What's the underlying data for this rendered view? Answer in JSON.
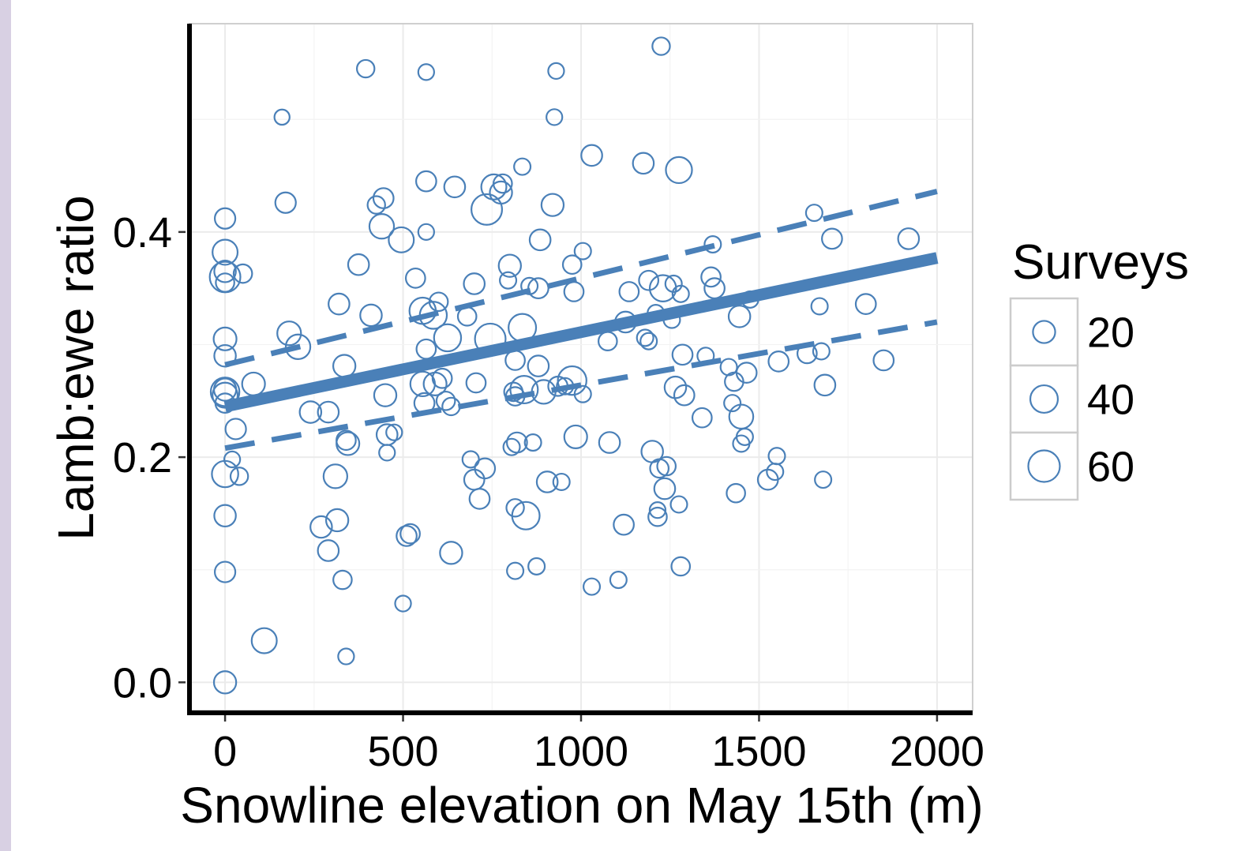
{
  "chart_data": {
    "type": "scatter",
    "xlabel": "Snowline elevation on May 15th (m)",
    "ylabel": "Lamb:ewe ratio",
    "xlim": [
      -100,
      2100
    ],
    "ylim": [
      -0.025,
      0.585
    ],
    "x_ticks": [
      0,
      500,
      1000,
      1500,
      2000
    ],
    "y_ticks": [
      0.0,
      0.2,
      0.4
    ],
    "y_tick_labels": [
      "0.0",
      "0.2",
      "0.4"
    ],
    "grid": true,
    "colors": {
      "point": "#4a80b8",
      "fit": "#4a80b8",
      "grid": "#ebebeb",
      "legend_border": "#cccccc"
    },
    "legend": {
      "title": "Surveys",
      "position": "right",
      "entries": [
        {
          "label": "20",
          "value": 20
        },
        {
          "label": "40",
          "value": 40
        },
        {
          "label": "60",
          "value": 60
        }
      ]
    },
    "fit": {
      "line": {
        "x": [
          0,
          2000
        ],
        "y": [
          0.245,
          0.377
        ]
      },
      "upper_ci": {
        "x": [
          0,
          2000
        ],
        "y": [
          0.282,
          0.436
        ]
      },
      "lower_ci": {
        "x": [
          0,
          2000
        ],
        "y": [
          0.208,
          0.32
        ]
      }
    },
    "series": [
      {
        "points": [
          [
            0,
            0.412,
            15
          ],
          [
            0,
            0.382,
            30
          ],
          [
            0,
            0.36,
            55
          ],
          [
            0,
            0.365,
            18
          ],
          [
            0,
            0.355,
            10
          ],
          [
            0,
            0.305,
            22
          ],
          [
            0,
            0.29,
            18
          ],
          [
            0,
            0.258,
            45
          ],
          [
            0,
            0.255,
            30
          ],
          [
            0,
            0.26,
            20
          ],
          [
            0,
            0.248,
            12
          ],
          [
            0,
            0.185,
            35
          ],
          [
            0,
            0.148,
            18
          ],
          [
            0,
            0.098,
            15
          ],
          [
            0,
            0,
            20
          ],
          [
            50,
            0.363,
            10
          ],
          [
            80,
            0.265,
            22
          ],
          [
            30,
            0.225,
            15
          ],
          [
            20,
            0.198,
            5
          ],
          [
            40,
            0.183,
            8
          ],
          [
            110,
            0.037,
            30
          ],
          [
            160,
            0.502,
            4
          ],
          [
            170,
            0.426,
            15
          ],
          [
            180,
            0.31,
            25
          ],
          [
            205,
            0.298,
            28
          ],
          [
            240,
            0.24,
            18
          ],
          [
            270,
            0.138,
            18
          ],
          [
            290,
            0.117,
            16
          ],
          [
            290,
            0.24,
            16
          ],
          [
            310,
            0.183,
            25
          ],
          [
            315,
            0.144,
            20
          ],
          [
            320,
            0.336,
            16
          ],
          [
            330,
            0.091,
            10
          ],
          [
            335,
            0.281,
            20
          ],
          [
            340,
            0.215,
            12
          ],
          [
            345,
            0.212,
            22
          ],
          [
            340,
            0.023,
            5
          ],
          [
            375,
            0.371,
            16
          ],
          [
            395,
            0.545,
            8
          ],
          [
            410,
            0.326,
            18
          ],
          [
            425,
            0.424,
            8
          ],
          [
            440,
            0.405,
            28
          ],
          [
            445,
            0.43,
            14
          ],
          [
            450,
            0.255,
            20
          ],
          [
            455,
            0.22,
            16
          ],
          [
            455,
            0.204,
            5
          ],
          [
            475,
            0.222,
            5
          ],
          [
            495,
            0.393,
            30
          ],
          [
            500,
            0.07,
            5
          ],
          [
            510,
            0.13,
            14
          ],
          [
            520,
            0.132,
            12
          ],
          [
            535,
            0.359,
            12
          ],
          [
            555,
            0.33,
            35
          ],
          [
            555,
            0.265,
            28
          ],
          [
            560,
            0.248,
            14
          ],
          [
            565,
            0.445,
            14
          ],
          [
            565,
            0.296,
            12
          ],
          [
            565,
            0.4,
            5
          ],
          [
            565,
            0.542,
            5
          ],
          [
            585,
            0.326,
            38
          ],
          [
            590,
            0.265,
            22
          ],
          [
            600,
            0.338,
            10
          ],
          [
            610,
            0.27,
            12
          ],
          [
            620,
            0.25,
            10
          ],
          [
            625,
            0.306,
            38
          ],
          [
            635,
            0.115,
            20
          ],
          [
            635,
            0.245,
            8
          ],
          [
            645,
            0.44,
            16
          ],
          [
            680,
            0.325,
            10
          ],
          [
            690,
            0.198,
            6
          ],
          [
            700,
            0.354,
            16
          ],
          [
            700,
            0.18,
            14
          ],
          [
            705,
            0.266,
            12
          ],
          [
            715,
            0.163,
            14
          ],
          [
            730,
            0.19,
            14
          ],
          [
            735,
            0.42,
            55
          ],
          [
            745,
            0.305,
            55
          ],
          [
            755,
            0.44,
            30
          ],
          [
            775,
            0.435,
            20
          ],
          [
            780,
            0.443,
            10
          ],
          [
            795,
            0.357,
            6
          ],
          [
            800,
            0.37,
            20
          ],
          [
            805,
            0.209,
            6
          ],
          [
            810,
            0.258,
            10
          ],
          [
            815,
            0.254,
            10
          ],
          [
            815,
            0.286,
            12
          ],
          [
            815,
            0.099,
            6
          ],
          [
            815,
            0.155,
            8
          ],
          [
            820,
            0.213,
            14
          ],
          [
            835,
            0.315,
            40
          ],
          [
            835,
            0.458,
            6
          ],
          [
            840,
            0.26,
            40
          ],
          [
            845,
            0.148,
            40
          ],
          [
            855,
            0.352,
            6
          ],
          [
            865,
            0.213,
            6
          ],
          [
            875,
            0.103,
            6
          ],
          [
            880,
            0.35,
            14
          ],
          [
            880,
            0.281,
            16
          ],
          [
            885,
            0.393,
            16
          ],
          [
            895,
            0.258,
            25
          ],
          [
            905,
            0.178,
            16
          ],
          [
            920,
            0.424,
            20
          ],
          [
            925,
            0.502,
            5
          ],
          [
            930,
            0.543,
            5
          ],
          [
            935,
            0.263,
            12
          ],
          [
            945,
            0.178,
            6
          ],
          [
            955,
            0.263,
            6
          ],
          [
            975,
            0.268,
            45
          ],
          [
            980,
            0.347,
            12
          ],
          [
            975,
            0.371,
            10
          ],
          [
            1005,
            0.383,
            6
          ],
          [
            985,
            0.218,
            22
          ],
          [
            1005,
            0.256,
            6
          ],
          [
            1030,
            0.468,
            16
          ],
          [
            1030,
            0.085,
            6
          ],
          [
            1075,
            0.303,
            10
          ],
          [
            1080,
            0.213,
            16
          ],
          [
            1105,
            0.091,
            6
          ],
          [
            1120,
            0.14,
            14
          ],
          [
            1125,
            0.32,
            16
          ],
          [
            1135,
            0.347,
            12
          ],
          [
            1175,
            0.461,
            16
          ],
          [
            1180,
            0.306,
            6
          ],
          [
            1190,
            0.303,
            6
          ],
          [
            1190,
            0.357,
            12
          ],
          [
            1200,
            0.205,
            18
          ],
          [
            1210,
            0.328,
            6
          ],
          [
            1215,
            0.147,
            10
          ],
          [
            1215,
            0.153,
            5
          ],
          [
            1225,
            0.565,
            8
          ],
          [
            1220,
            0.19,
            10
          ],
          [
            1230,
            0.35,
            35
          ],
          [
            1235,
            0.172,
            16
          ],
          [
            1240,
            0.192,
            10
          ],
          [
            1255,
            0.322,
            6
          ],
          [
            1260,
            0.354,
            6
          ],
          [
            1265,
            0.262,
            18
          ],
          [
            1275,
            0.455,
            34
          ],
          [
            1275,
            0.158,
            6
          ],
          [
            1280,
            0.345,
            6
          ],
          [
            1280,
            0.103,
            10
          ],
          [
            1285,
            0.291,
            14
          ],
          [
            1290,
            0.255,
            14
          ],
          [
            1340,
            0.235,
            12
          ],
          [
            1350,
            0.29,
            6
          ],
          [
            1365,
            0.36,
            12
          ],
          [
            1370,
            0.389,
            6
          ],
          [
            1375,
            0.35,
            14
          ],
          [
            1415,
            0.28,
            6
          ],
          [
            1425,
            0.248,
            6
          ],
          [
            1430,
            0.267,
            10
          ],
          [
            1435,
            0.168,
            10
          ],
          [
            1445,
            0.325,
            18
          ],
          [
            1450,
            0.212,
            6
          ],
          [
            1450,
            0.236,
            26
          ],
          [
            1460,
            0.218,
            6
          ],
          [
            1465,
            0.275,
            14
          ],
          [
            1475,
            0.34,
            6
          ],
          [
            1525,
            0.18,
            14
          ],
          [
            1545,
            0.187,
            6
          ],
          [
            1550,
            0.201,
            6
          ],
          [
            1555,
            0.285,
            14
          ],
          [
            1635,
            0.292,
            12
          ],
          [
            1655,
            0.417,
            6
          ],
          [
            1670,
            0.334,
            6
          ],
          [
            1675,
            0.294,
            6
          ],
          [
            1680,
            0.18,
            6
          ],
          [
            1685,
            0.264,
            16
          ],
          [
            1705,
            0.394,
            14
          ],
          [
            1800,
            0.336,
            14
          ],
          [
            1850,
            0.286,
            14
          ],
          [
            1920,
            0.394,
            16
          ]
        ]
      }
    ]
  }
}
